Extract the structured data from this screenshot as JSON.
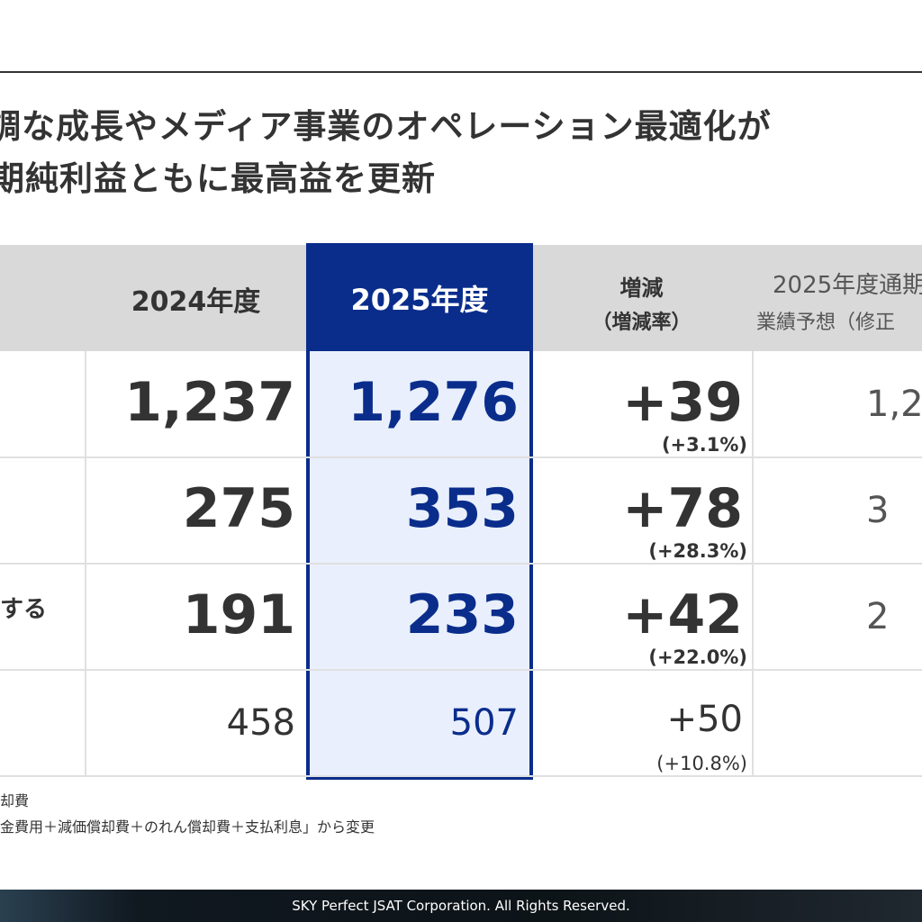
{
  "header": {
    "title_lines": [
      "調な成長やメディア事業のオペレーション最適化が",
      "期純利益ともに最高益を更新"
    ]
  },
  "table": {
    "columns": [
      "2024年度",
      "2025年度",
      [
        "増減",
        "（増減率）"
      ],
      [
        "2025年度通期",
        "業績予想（修正"
      ]
    ],
    "rows": [
      {
        "label": "",
        "prev": "1,237",
        "curr": "1,276",
        "diff": "+39",
        "rate": "(+3.1%)",
        "forecast": "1,2"
      },
      {
        "label": "",
        "prev": "275",
        "curr": "353",
        "diff": "+78",
        "rate": "(+28.3%)",
        "forecast": "3"
      },
      {
        "label": "する",
        "prev": "191",
        "curr": "233",
        "diff": "+42",
        "rate": "(+22.0%)",
        "forecast": "2"
      },
      {
        "label": "",
        "prev": "458",
        "curr": "507",
        "diff": "+50",
        "rate": "(+10.8%)",
        "forecast": ""
      }
    ]
  },
  "notes": [
    "却費",
    "金費用＋減価償却費＋のれん償却費＋支払利息」から変更"
  ],
  "footer": "SKY Perfect JSAT Corporation. All Rights Reserved."
}
